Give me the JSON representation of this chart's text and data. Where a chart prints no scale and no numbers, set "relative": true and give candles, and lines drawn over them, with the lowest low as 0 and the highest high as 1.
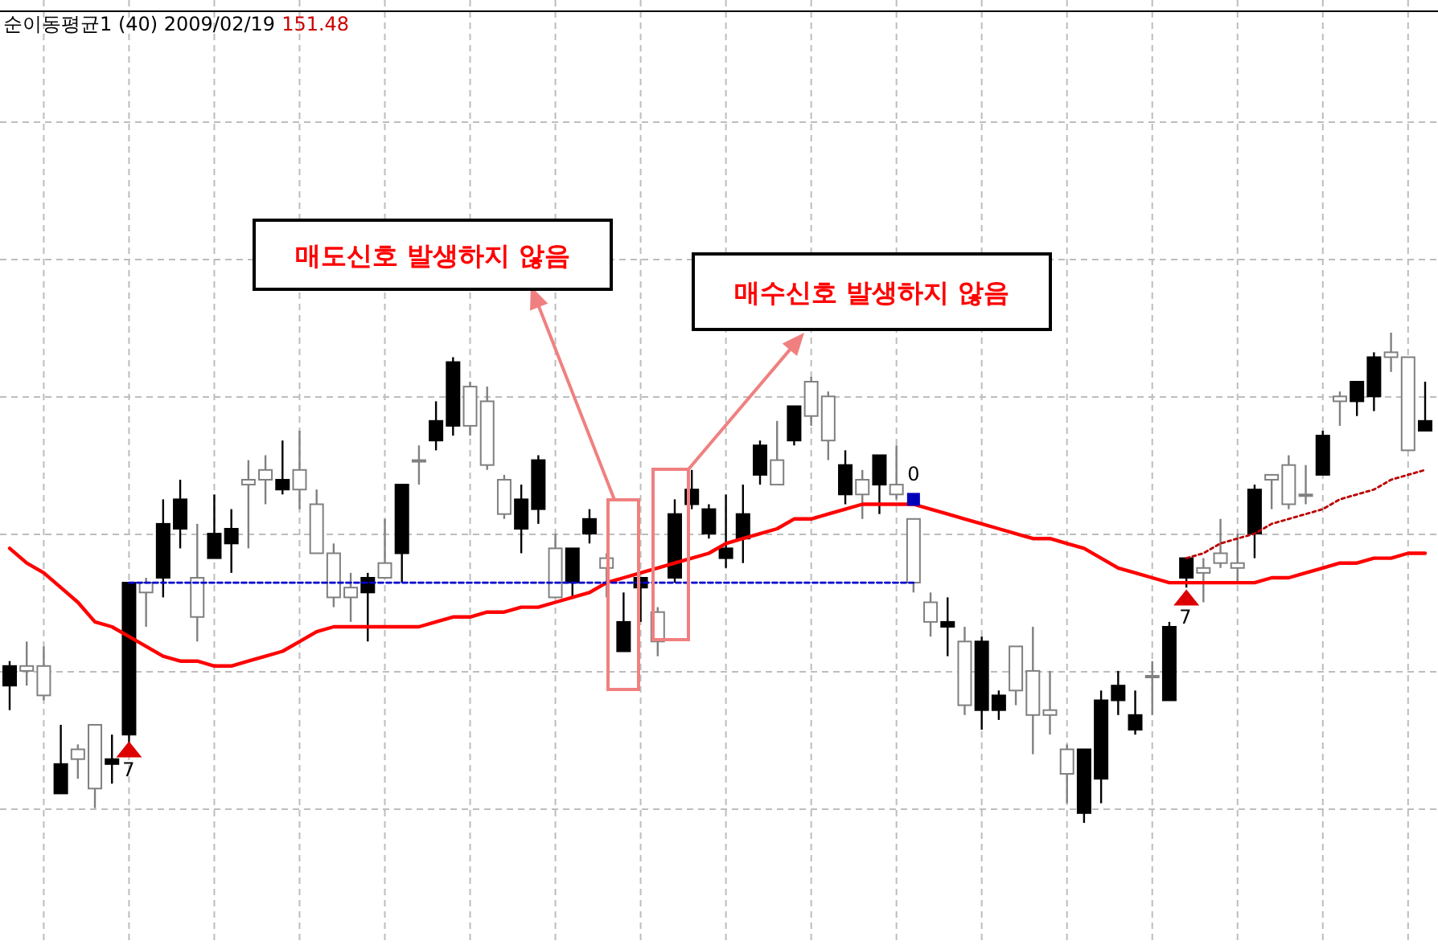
{
  "chart_data": {
    "type": "candlestick",
    "title": "순이동평균1 (40) 2009/02/19",
    "subtitle": "151.48",
    "relative": true,
    "grid": true,
    "categories": [
      null,
      null,
      null,
      null,
      null,
      null,
      null,
      null,
      null,
      null,
      null,
      null,
      null,
      null,
      null,
      null,
      null,
      null,
      null,
      null,
      null,
      null,
      null,
      null,
      null,
      null,
      null,
      null,
      null,
      null,
      null,
      null,
      null,
      null,
      null,
      null,
      null,
      null,
      null,
      null,
      null,
      null,
      null,
      null,
      null,
      null,
      null,
      null,
      null,
      null,
      null,
      null,
      null,
      null,
      null,
      null,
      null,
      null,
      null,
      null,
      null,
      null,
      null,
      null,
      null,
      null,
      null,
      null,
      null,
      null,
      null,
      null,
      null,
      null,
      null,
      null,
      null,
      null,
      null,
      null,
      null,
      null,
      null,
      null
    ],
    "ohlc": [
      [
        0.28,
        0.33,
        0.23,
        0.32
      ],
      [
        0.32,
        0.37,
        0.28,
        0.31
      ],
      [
        0.32,
        0.36,
        0.25,
        0.26
      ],
      [
        0.06,
        0.2,
        0.06,
        0.12
      ],
      [
        0.15,
        0.16,
        0.09,
        0.13
      ],
      [
        0.2,
        0.2,
        0.03,
        0.07
      ],
      [
        0.12,
        0.18,
        0.08,
        0.13
      ],
      [
        0.18,
        0.49,
        0.16,
        0.49
      ],
      [
        0.49,
        0.5,
        0.4,
        0.47
      ],
      [
        0.5,
        0.66,
        0.46,
        0.61
      ],
      [
        0.6,
        0.7,
        0.56,
        0.66
      ],
      [
        0.5,
        0.61,
        0.37,
        0.42
      ],
      [
        0.54,
        0.67,
        0.54,
        0.59
      ],
      [
        0.57,
        0.64,
        0.51,
        0.6
      ],
      [
        0.7,
        0.74,
        0.56,
        0.69
      ],
      [
        0.72,
        0.75,
        0.65,
        0.7
      ],
      [
        0.68,
        0.78,
        0.67,
        0.7
      ],
      [
        0.72,
        0.8,
        0.64,
        0.68
      ],
      [
        0.65,
        0.68,
        0.55,
        0.55
      ],
      [
        0.55,
        0.57,
        0.44,
        0.46
      ],
      [
        0.48,
        0.51,
        0.41,
        0.46
      ],
      [
        0.47,
        0.51,
        0.37,
        0.5
      ],
      [
        0.53,
        0.62,
        0.5,
        0.5
      ],
      [
        0.55,
        0.69,
        0.49,
        0.69
      ],
      [
        0.74,
        0.77,
        0.69,
        0.74
      ],
      [
        0.78,
        0.86,
        0.76,
        0.82
      ],
      [
        0.81,
        0.95,
        0.79,
        0.94
      ],
      [
        0.89,
        0.9,
        0.79,
        0.81
      ],
      [
        0.86,
        0.89,
        0.72,
        0.73
      ],
      [
        0.7,
        0.71,
        0.62,
        0.63
      ],
      [
        0.6,
        0.69,
        0.55,
        0.66
      ],
      [
        0.64,
        0.75,
        0.61,
        0.74
      ],
      [
        0.56,
        0.59,
        0.46,
        0.46
      ],
      [
        0.49,
        0.56,
        0.46,
        0.56
      ],
      [
        0.59,
        0.64,
        0.57,
        0.62
      ],
      [
        0.54,
        0.55,
        0.46,
        0.52
      ],
      [
        0.35,
        0.47,
        0.35,
        0.41
      ],
      [
        0.48,
        0.5,
        0.41,
        0.5
      ],
      [
        0.43,
        0.44,
        0.34,
        0.37
      ],
      [
        0.5,
        0.66,
        0.49,
        0.63
      ],
      [
        0.65,
        0.72,
        0.64,
        0.68
      ],
      [
        0.59,
        0.65,
        0.58,
        0.64
      ],
      [
        0.54,
        0.67,
        0.52,
        0.56
      ],
      [
        0.58,
        0.69,
        0.53,
        0.63
      ],
      [
        0.71,
        0.78,
        0.69,
        0.77
      ],
      [
        0.74,
        0.82,
        0.69,
        0.69
      ],
      [
        0.78,
        0.85,
        0.77,
        0.85
      ],
      [
        0.9,
        0.91,
        0.81,
        0.83
      ],
      [
        0.87,
        0.88,
        0.74,
        0.78
      ],
      [
        0.67,
        0.76,
        0.65,
        0.73
      ],
      [
        0.7,
        0.72,
        0.62,
        0.67
      ],
      [
        0.69,
        0.75,
        0.63,
        0.75
      ],
      [
        0.69,
        0.77,
        0.66,
        0.67
      ],
      [
        0.62,
        0.62,
        0.47,
        0.49
      ],
      [
        0.45,
        0.47,
        0.38,
        0.41
      ],
      [
        0.4,
        0.46,
        0.34,
        0.41
      ],
      [
        0.37,
        0.4,
        0.22,
        0.24
      ],
      [
        0.23,
        0.38,
        0.19,
        0.37
      ],
      [
        0.23,
        0.27,
        0.21,
        0.26
      ],
      [
        0.36,
        0.36,
        0.24,
        0.27
      ],
      [
        0.31,
        0.4,
        0.14,
        0.22
      ],
      [
        0.23,
        0.31,
        0.18,
        0.22
      ],
      [
        0.15,
        0.16,
        0.04,
        0.1
      ],
      [
        0.02,
        0.15,
        0,
        0.15
      ],
      [
        0.09,
        0.27,
        0.04,
        0.25
      ],
      [
        0.25,
        0.31,
        0.22,
        0.28
      ],
      [
        0.19,
        0.27,
        0.18,
        0.22
      ],
      [
        0.3,
        0.33,
        0.22,
        0.3
      ],
      [
        0.25,
        0.41,
        0.25,
        0.4
      ],
      [
        0.5,
        0.54,
        0.48,
        0.54
      ],
      [
        0.52,
        0.54,
        0.45,
        0.51
      ],
      [
        0.55,
        0.62,
        0.52,
        0.53
      ],
      [
        0.53,
        0.59,
        0.49,
        0.52
      ],
      [
        0.59,
        0.69,
        0.54,
        0.68
      ],
      [
        0.71,
        0.71,
        0.64,
        0.7
      ],
      [
        0.73,
        0.75,
        0.64,
        0.65
      ],
      [
        0.67,
        0.73,
        0.65,
        0.67
      ],
      [
        0.71,
        0.8,
        0.71,
        0.79
      ],
      [
        0.87,
        0.88,
        0.81,
        0.86
      ],
      [
        0.86,
        0.9,
        0.83,
        0.9
      ],
      [
        0.87,
        0.96,
        0.84,
        0.95
      ],
      [
        0.96,
        1,
        0.92,
        0.95
      ],
      [
        0.95,
        0.95,
        0.76,
        0.76
      ],
      [
        0.8,
        0.9,
        0.8,
        0.82
      ]
    ],
    "series": [
      {
        "type": "line",
        "color": "#ff0000",
        "values": [
          0.56,
          0.53,
          0.51,
          0.48,
          0.45,
          0.41,
          0.4,
          0.38,
          0.36,
          0.34,
          0.33,
          0.33,
          0.32,
          0.32,
          0.33,
          0.34,
          0.35,
          0.37,
          0.39,
          0.4,
          0.4,
          0.4,
          0.4,
          0.4,
          0.4,
          0.41,
          0.42,
          0.42,
          0.43,
          0.43,
          0.44,
          0.44,
          0.45,
          0.46,
          0.47,
          0.49,
          0.5,
          0.51,
          0.52,
          0.53,
          0.54,
          0.55,
          0.57,
          0.58,
          0.59,
          0.6,
          0.62,
          0.62,
          0.63,
          0.64,
          0.65,
          0.65,
          0.65,
          0.65,
          0.64,
          0.63,
          0.62,
          0.61,
          0.6,
          0.59,
          0.58,
          0.58,
          0.57,
          0.56,
          0.54,
          0.52,
          0.51,
          0.5,
          0.49,
          0.49,
          0.49,
          0.49,
          0.49,
          0.49,
          0.5,
          0.5,
          0.51,
          0.52,
          0.53,
          0.53,
          0.54,
          0.54,
          0.55,
          0.55
        ]
      },
      {
        "type": "line",
        "color": "#0000cc",
        "line_style": "dashed",
        "values": [
          null,
          null,
          null,
          null,
          null,
          null,
          null,
          0.49,
          0.49,
          0.49,
          0.49,
          0.49,
          0.49,
          0.49,
          0.49,
          0.49,
          0.49,
          0.49,
          0.49,
          0.49,
          0.49,
          0.49,
          0.49,
          0.49,
          0.49,
          0.49,
          0.49,
          0.49,
          0.49,
          0.49,
          0.49,
          0.49,
          0.49,
          0.49,
          0.49,
          0.49,
          0.49,
          0.49,
          0.49,
          0.49,
          0.49,
          0.49,
          0.49,
          0.49,
          0.49,
          0.49,
          0.49,
          0.49,
          0.49,
          0.49,
          0.49,
          0.49,
          0.49,
          0.49,
          null,
          null,
          null,
          null,
          null,
          null,
          null,
          null,
          null,
          null,
          null,
          null,
          null,
          null,
          null,
          null,
          null,
          null,
          null,
          null,
          null,
          null,
          null,
          null,
          null,
          null,
          null,
          null,
          null,
          null
        ]
      },
      {
        "type": "line",
        "color": "#bb0000",
        "line_style": "dotted",
        "values": [
          null,
          null,
          null,
          null,
          null,
          null,
          null,
          null,
          null,
          null,
          null,
          null,
          null,
          null,
          null,
          null,
          null,
          null,
          null,
          null,
          null,
          null,
          null,
          null,
          null,
          null,
          null,
          null,
          null,
          null,
          null,
          null,
          null,
          null,
          null,
          null,
          null,
          null,
          null,
          null,
          null,
          null,
          null,
          null,
          null,
          null,
          null,
          null,
          null,
          null,
          null,
          null,
          null,
          null,
          null,
          null,
          null,
          null,
          null,
          null,
          null,
          null,
          null,
          null,
          null,
          null,
          null,
          null,
          null,
          0.54,
          0.55,
          0.57,
          0.58,
          0.59,
          0.61,
          0.62,
          0.63,
          0.64,
          0.66,
          0.67,
          0.68,
          0.7,
          0.71,
          0.72
        ]
      },
      {
        "type": "scatter",
        "marker": "triangle",
        "color": "#dd0000",
        "values": [
          null,
          null,
          null,
          null,
          null,
          null,
          null,
          0.15,
          null,
          null,
          null,
          null,
          null,
          null,
          null,
          null,
          null,
          null,
          null,
          null,
          null,
          null,
          null,
          null,
          null,
          null,
          null,
          null,
          null,
          null,
          null,
          null,
          null,
          null,
          null,
          null,
          null,
          null,
          null,
          null,
          null,
          null,
          null,
          null,
          null,
          null,
          null,
          null,
          null,
          null,
          null,
          null,
          null,
          null,
          null,
          null,
          null,
          null,
          null,
          null,
          null,
          null,
          null,
          null,
          null,
          null,
          null,
          null,
          null,
          0.46,
          null,
          null,
          null,
          null,
          null,
          null,
          null,
          null,
          null,
          null,
          null,
          null,
          null,
          null
        ]
      },
      {
        "type": "scatter",
        "marker": "square",
        "color": "#0000bb",
        "values": [
          null,
          null,
          null,
          null,
          null,
          null,
          null,
          null,
          null,
          null,
          null,
          null,
          null,
          null,
          null,
          null,
          null,
          null,
          null,
          null,
          null,
          null,
          null,
          null,
          null,
          null,
          null,
          null,
          null,
          null,
          null,
          null,
          null,
          null,
          null,
          null,
          null,
          null,
          null,
          null,
          null,
          null,
          null,
          null,
          null,
          null,
          null,
          null,
          null,
          null,
          null,
          null,
          null,
          0.66,
          null,
          null,
          null,
          null,
          null,
          null,
          null,
          null,
          null,
          null,
          null,
          null,
          null,
          null,
          null,
          null,
          null,
          null,
          null,
          null,
          null,
          null,
          null,
          null,
          null,
          null,
          null,
          null,
          null,
          null
        ]
      }
    ],
    "annotations": [
      "매도신호 발생하지 않음",
      "매수신호 발생하지 않음",
      "7",
      "7",
      "0"
    ]
  }
}
